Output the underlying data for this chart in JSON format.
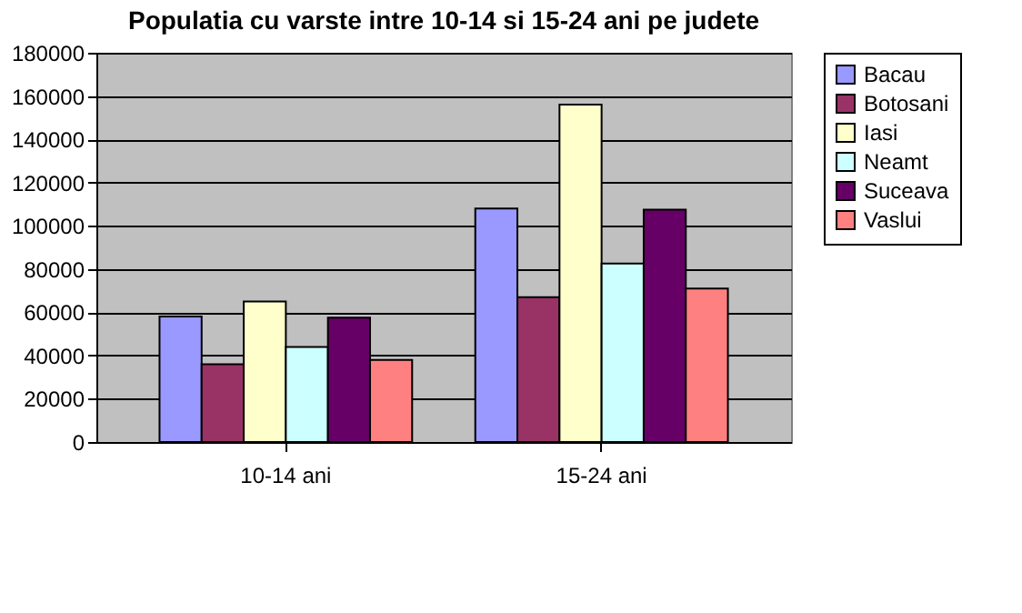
{
  "chart_data": {
    "type": "bar",
    "title": "Populatia cu varste intre 10-14 si 15-24 ani pe judete",
    "categories": [
      "10-14 ani",
      "15-24 ani"
    ],
    "series": [
      {
        "name": "Bacau",
        "color": "#9999ff",
        "values": [
          58000,
          108000
        ]
      },
      {
        "name": "Botosani",
        "color": "#993366",
        "values": [
          36000,
          67000
        ]
      },
      {
        "name": "Iasi",
        "color": "#ffffcc",
        "values": [
          65000,
          156000
        ]
      },
      {
        "name": "Neamt",
        "color": "#ccffff",
        "values": [
          44000,
          82500
        ]
      },
      {
        "name": "Suceava",
        "color": "#660066",
        "values": [
          57500,
          107500
        ]
      },
      {
        "name": "Vaslui",
        "color": "#ff8080",
        "values": [
          38000,
          71000
        ]
      }
    ],
    "ylim": [
      0,
      180000
    ],
    "yticks": [
      0,
      20000,
      40000,
      60000,
      80000,
      100000,
      120000,
      140000,
      160000,
      180000
    ],
    "grid": "y",
    "legend": "right"
  }
}
